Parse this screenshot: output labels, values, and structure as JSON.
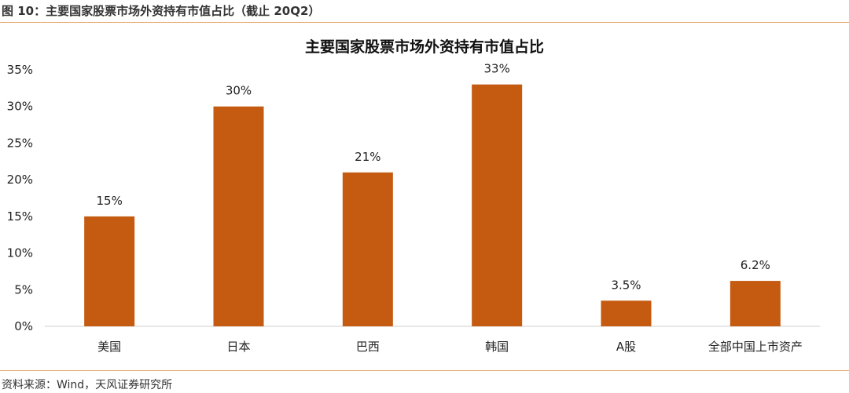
{
  "figure": {
    "caption": "图 10：主要国家股票市场外资持有市值占比（截止 20Q2）",
    "source": "资料来源：Wind，天风证券研究所"
  },
  "chart_data": {
    "type": "bar",
    "title": "主要国家股票市场外资持有市值占比",
    "categories": [
      "美国",
      "日本",
      "巴西",
      "韩国",
      "A股",
      "全部中国上市资产"
    ],
    "values": [
      15,
      30,
      21,
      33,
      3.5,
      6.2
    ],
    "data_labels": [
      "15%",
      "30%",
      "21%",
      "33%",
      "3.5%",
      "6.2%"
    ],
    "ylim": [
      0,
      35
    ],
    "yticks": [
      0,
      5,
      10,
      15,
      20,
      25,
      30,
      35
    ],
    "ytick_labels": [
      "0%",
      "5%",
      "10%",
      "15%",
      "20%",
      "25%",
      "30%",
      "35%"
    ],
    "bar_color": "#c55a11",
    "grid": false,
    "legend": "none"
  }
}
